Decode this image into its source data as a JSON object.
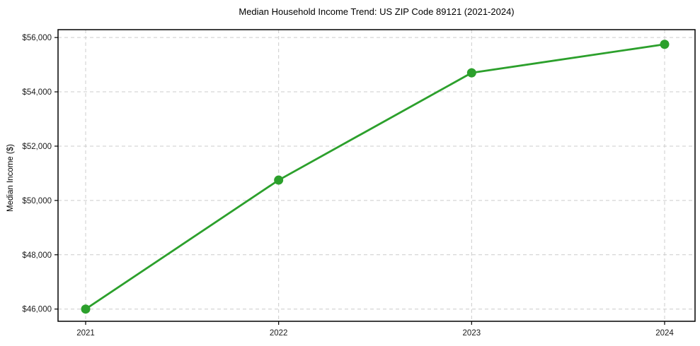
{
  "title": "Median Household Income Trend: US ZIP Code 89121 (2021-2024)",
  "chart_data": {
    "type": "line",
    "title": "Median Household Income Trend: US ZIP Code 89121 (2021-2024)",
    "categories": [
      "2021",
      "2022",
      "2023",
      "2024"
    ],
    "series": [
      {
        "name": "Median Household Income",
        "values": [
          46000,
          50750,
          54700,
          55750
        ]
      }
    ],
    "xlabel": "",
    "ylabel": "Median Income ($)",
    "ylim": [
      45550,
      56290
    ],
    "yticks": [
      46000,
      48000,
      50000,
      52000,
      54000,
      56000
    ],
    "ytick_labels": [
      "$46,000",
      "$48,000",
      "$50,000",
      "$52,000",
      "$54,000",
      "$56,000"
    ],
    "grid": true,
    "legend": "none",
    "line_color": "#2ca02c",
    "marker": "circle",
    "background": "#ffffff"
  }
}
